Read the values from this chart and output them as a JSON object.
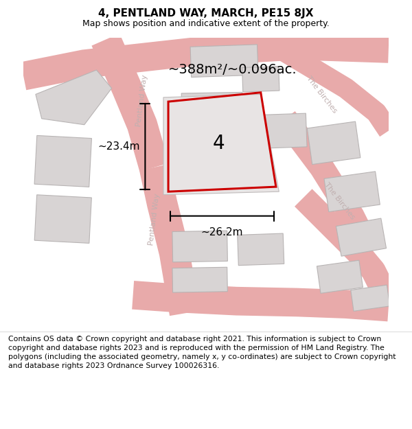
{
  "title": "4, PENTLAND WAY, MARCH, PE15 8JX",
  "subtitle": "Map shows position and indicative extent of the property.",
  "area_text": "~388m²/~0.096ac.",
  "label_number": "4",
  "dim_width": "~26.2m",
  "dim_height": "~23.4m",
  "bg_color": "#ffffff",
  "map_bg": "#f7f2f2",
  "footer_text": "Contains OS data © Crown copyright and database right 2021. This information is subject to Crown copyright and database rights 2023 and is reproduced with the permission of HM Land Registry. The polygons (including the associated geometry, namely x, y co-ordinates) are subject to Crown copyright and database rights 2023 Ordnance Survey 100026316.",
  "road_color": "#e8aaaa",
  "building_color": "#d8d4d4",
  "building_edge": "#b8b4b4",
  "title_fontsize": 11,
  "subtitle_fontsize": 9,
  "footer_fontsize": 7.8,
  "area_fontsize": 14,
  "label_fontsize": 20,
  "dim_fontsize": 11,
  "road_label_color": "#c0b0b0",
  "road_label_fontsize": 8
}
